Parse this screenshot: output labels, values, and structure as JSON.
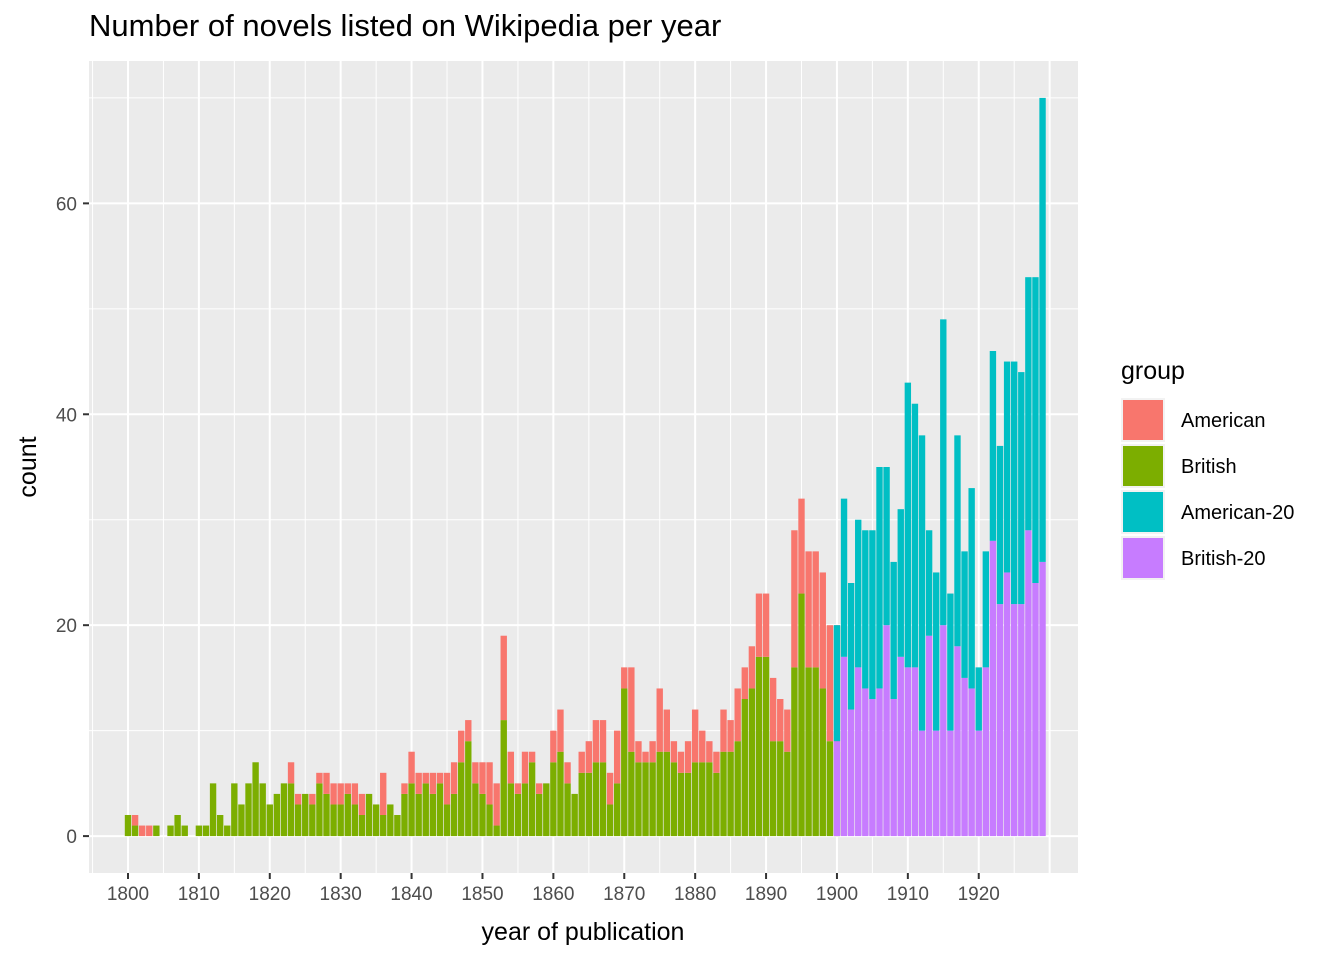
{
  "chart_data": {
    "type": "bar",
    "stacked": true,
    "title": "Number of novels listed on Wikipedia per year",
    "xlabel": "year of publication",
    "ylabel": "count",
    "x_ticks": [
      1800,
      1810,
      1820,
      1830,
      1840,
      1850,
      1860,
      1870,
      1880,
      1890,
      1900,
      1910,
      1920
    ],
    "y_ticks": [
      0,
      20,
      40,
      60
    ],
    "xlim": [
      1794.5,
      1934
    ],
    "ylim": [
      -3.5,
      73.5
    ],
    "grid": true,
    "legend": {
      "title": "group",
      "position": "right"
    },
    "colors": {
      "American": "#F8766D",
      "British": "#7CAE00",
      "American-20": "#00BFC4",
      "British-20": "#C77CFF"
    },
    "years": [
      1800,
      1801,
      1802,
      1803,
      1804,
      1805,
      1806,
      1807,
      1808,
      1809,
      1810,
      1811,
      1812,
      1813,
      1814,
      1815,
      1816,
      1817,
      1818,
      1819,
      1820,
      1821,
      1822,
      1823,
      1824,
      1825,
      1826,
      1827,
      1828,
      1829,
      1830,
      1831,
      1832,
      1833,
      1834,
      1835,
      1836,
      1837,
      1838,
      1839,
      1840,
      1841,
      1842,
      1843,
      1844,
      1845,
      1846,
      1847,
      1848,
      1849,
      1850,
      1851,
      1852,
      1853,
      1854,
      1855,
      1856,
      1857,
      1858,
      1859,
      1860,
      1861,
      1862,
      1863,
      1864,
      1865,
      1866,
      1867,
      1868,
      1869,
      1870,
      1871,
      1872,
      1873,
      1874,
      1875,
      1876,
      1877,
      1878,
      1879,
      1880,
      1881,
      1882,
      1883,
      1884,
      1885,
      1886,
      1887,
      1888,
      1889,
      1890,
      1891,
      1892,
      1893,
      1894,
      1895,
      1896,
      1897,
      1898,
      1899,
      1900,
      1901,
      1902,
      1903,
      1904,
      1905,
      1906,
      1907,
      1908,
      1909,
      1910,
      1911,
      1912,
      1913,
      1914,
      1915,
      1916,
      1917,
      1918,
      1919,
      1920,
      1921,
      1922,
      1923,
      1924,
      1925,
      1926,
      1927,
      1928,
      1929
    ],
    "series": [
      {
        "name": "British",
        "values": [
          2,
          1,
          0,
          0,
          1,
          0,
          1,
          2,
          1,
          0,
          1,
          1,
          5,
          2,
          1,
          5,
          3,
          5,
          7,
          5,
          3,
          4,
          5,
          5,
          3,
          4,
          3,
          5,
          4,
          3,
          3,
          4,
          3,
          2,
          4,
          3,
          2,
          3,
          2,
          4,
          5,
          4,
          5,
          4,
          5,
          3,
          4,
          7,
          9,
          5,
          4,
          3,
          1,
          11,
          5,
          4,
          5,
          7,
          4,
          5,
          7,
          8,
          5,
          4,
          6,
          6,
          7,
          7,
          3,
          5,
          14,
          8,
          7,
          7,
          7,
          8,
          8,
          7,
          6,
          6,
          7,
          7,
          7,
          6,
          8,
          8,
          9,
          13,
          14,
          17,
          17,
          9,
          9,
          8,
          16,
          23,
          16,
          16,
          14,
          9,
          8
        ],
        "start": 1800
      },
      {
        "name": "American",
        "values": [
          0,
          1,
          1,
          1,
          0,
          0,
          0,
          0,
          0,
          0,
          0,
          0,
          0,
          0,
          0,
          0,
          0,
          0,
          0,
          0,
          0,
          0,
          0,
          2,
          1,
          0,
          1,
          1,
          2,
          2,
          2,
          1,
          2,
          2,
          0,
          0,
          4,
          0,
          0,
          1,
          3,
          2,
          1,
          2,
          1,
          3,
          3,
          3,
          2,
          2,
          3,
          4,
          4,
          8,
          3,
          1,
          3,
          1,
          1,
          0,
          3,
          4,
          2,
          0,
          2,
          3,
          4,
          4,
          3,
          5,
          2,
          8,
          2,
          1,
          2,
          6,
          4,
          2,
          2,
          3,
          5,
          3,
          2,
          2,
          4,
          3,
          5,
          3,
          4,
          6,
          6,
          6,
          4,
          4,
          13,
          9,
          11,
          11,
          11,
          11,
          12
        ],
        "start": 1800
      },
      {
        "name": "British-20",
        "values": [
          9,
          17,
          12,
          16,
          14,
          13,
          14,
          20,
          13,
          17,
          16,
          16,
          10,
          19,
          10,
          20,
          10,
          18,
          15,
          14,
          10,
          16,
          28,
          22,
          25,
          22,
          22,
          29,
          24,
          26
        ],
        "start": 1900
      },
      {
        "name": "American-20",
        "values": [
          11,
          15,
          12,
          14,
          15,
          16,
          21,
          15,
          13,
          14,
          27,
          25,
          28,
          10,
          15,
          29,
          13,
          20,
          12,
          19,
          6,
          11,
          18,
          15,
          20,
          23,
          22,
          24,
          29,
          44
        ],
        "start": 1900
      }
    ]
  }
}
